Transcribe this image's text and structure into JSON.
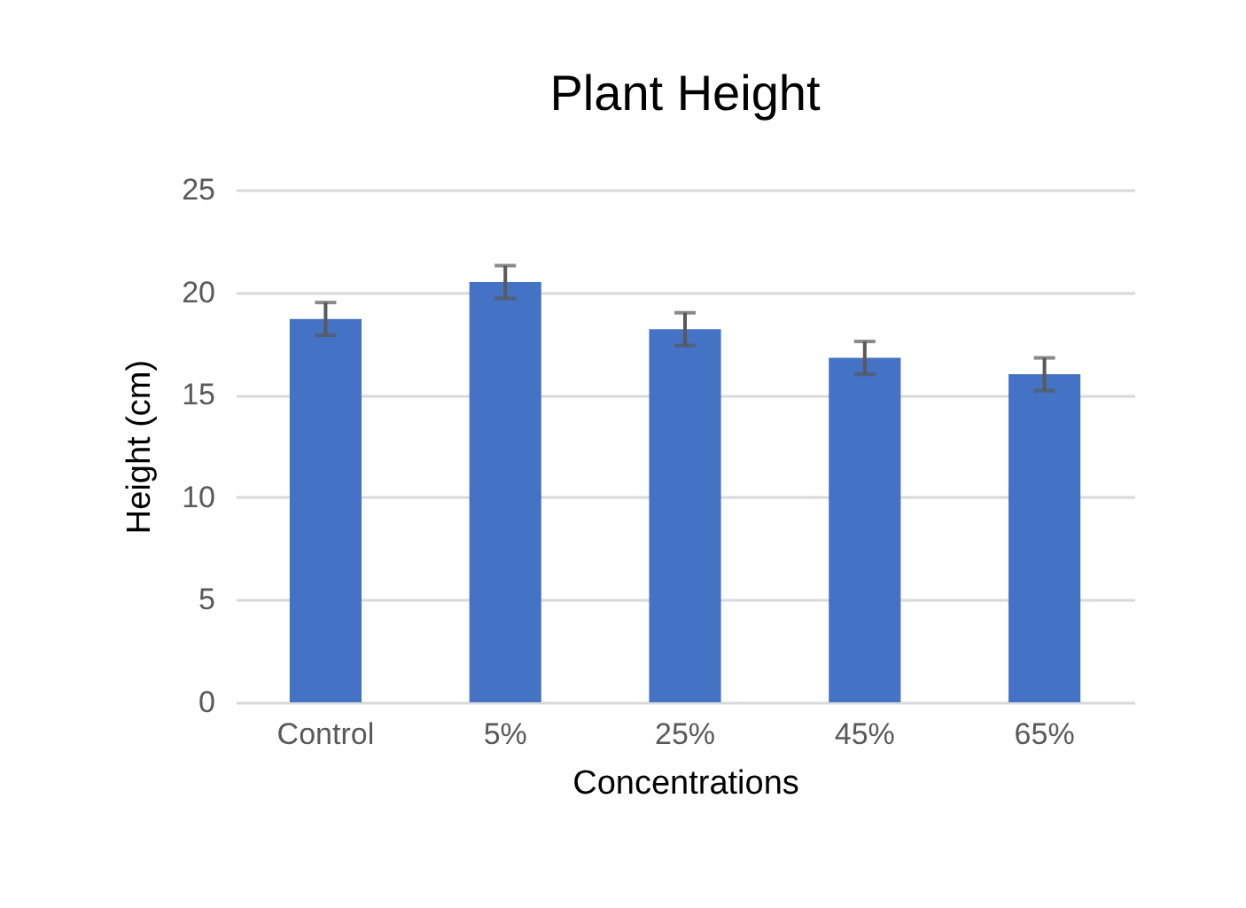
{
  "chart_data": {
    "type": "bar",
    "title": "Plant Height",
    "xlabel": "Concentrations",
    "ylabel": "Height (cm)",
    "categories": [
      "Control",
      "5%",
      "25%",
      "45%",
      "65%"
    ],
    "series": [
      {
        "color": "#4472c4",
        "values": [
          18.7,
          20.5,
          18.2,
          16.8,
          16.0
        ],
        "errors": [
          0.8,
          0.8,
          0.8,
          0.8,
          0.8
        ]
      }
    ],
    "ylim": [
      0,
      25
    ],
    "yticks": [
      0,
      5,
      10,
      15,
      20,
      25
    ],
    "grid": "y"
  }
}
